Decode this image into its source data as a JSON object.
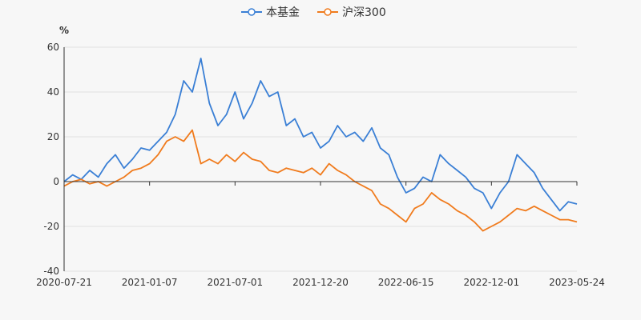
{
  "chart_data": {
    "type": "line",
    "y_unit": "%",
    "ylim": [
      -40,
      60
    ],
    "y_ticks": [
      -40,
      -20,
      0,
      20,
      40,
      60
    ],
    "x_tick_labels": [
      "2020-07-21",
      "2021-01-07",
      "2021-07-01",
      "2021-12-20",
      "2022-06-15",
      "2022-12-01",
      "2023-05-24"
    ],
    "legend_position": "top-center",
    "legend": [
      "本基金",
      "沪深300"
    ],
    "series": [
      {
        "name": "本基金",
        "color": "#3a7fd5",
        "values": [
          0,
          3,
          1,
          5,
          2,
          8,
          12,
          6,
          10,
          15,
          14,
          18,
          22,
          30,
          45,
          40,
          55,
          35,
          25,
          30,
          40,
          28,
          35,
          45,
          38,
          40,
          25,
          28,
          20,
          22,
          15,
          18,
          25,
          20,
          22,
          18,
          24,
          15,
          12,
          2,
          -5,
          -3,
          2,
          0,
          12,
          8,
          5,
          2,
          -3,
          -5,
          -12,
          -5,
          0,
          12,
          8,
          4,
          -3,
          -8,
          -13,
          -9,
          -10
        ]
      },
      {
        "name": "沪深300",
        "color": "#f07b1d",
        "values": [
          -2,
          0,
          1,
          -1,
          0,
          -2,
          0,
          2,
          5,
          6,
          8,
          12,
          18,
          20,
          18,
          23,
          8,
          10,
          8,
          12,
          9,
          13,
          10,
          9,
          5,
          4,
          6,
          5,
          4,
          6,
          3,
          8,
          5,
          3,
          0,
          -2,
          -4,
          -10,
          -12,
          -15,
          -18,
          -12,
          -10,
          -5,
          -8,
          -10,
          -13,
          -15,
          -18,
          -22,
          -20,
          -18,
          -15,
          -12,
          -13,
          -11,
          -13,
          -15,
          -17,
          -17,
          -18
        ]
      }
    ]
  }
}
